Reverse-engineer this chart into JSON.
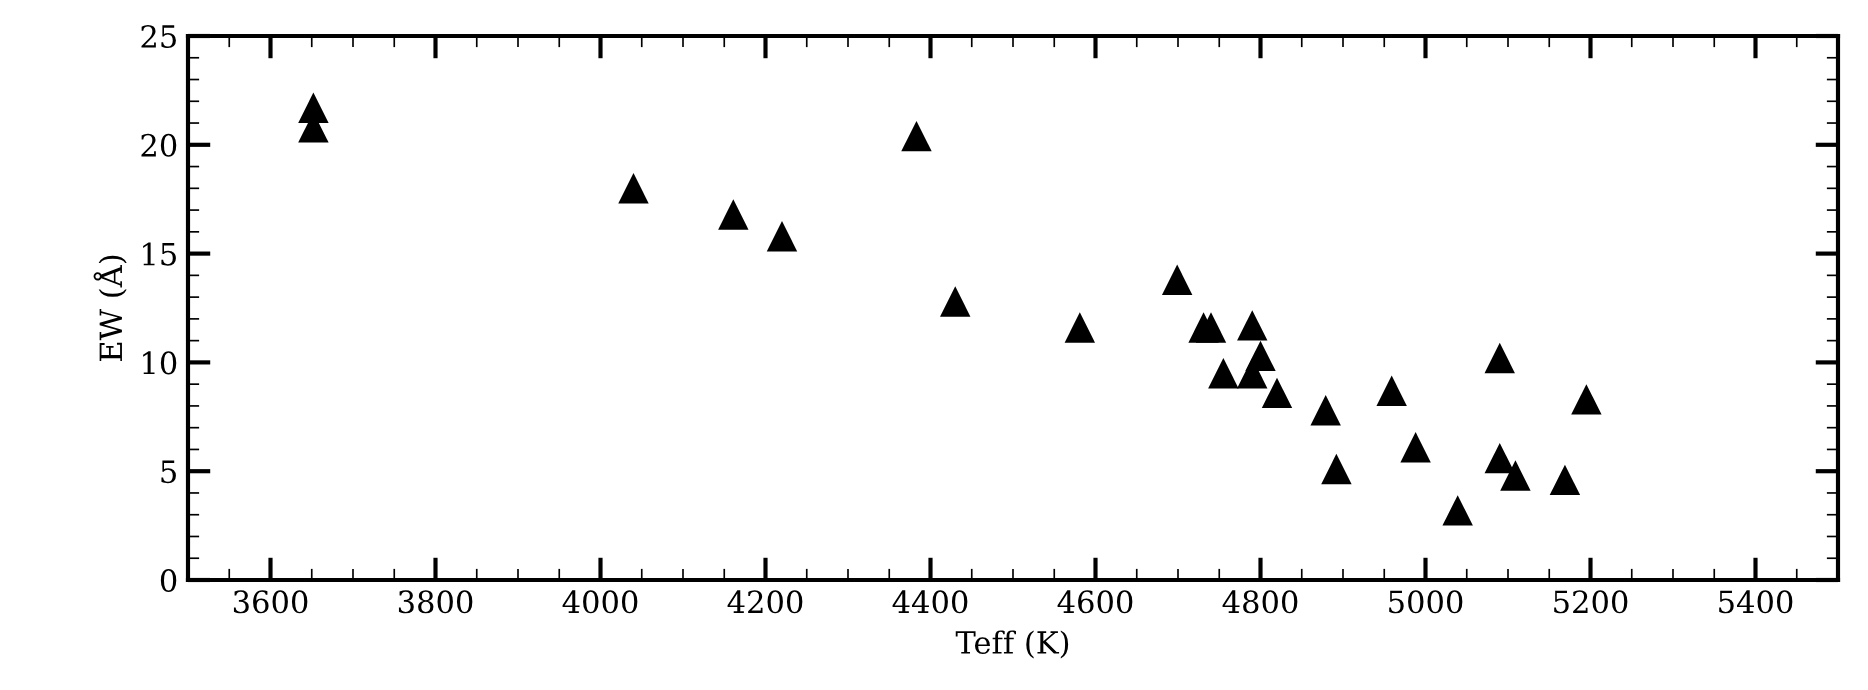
{
  "chart_data": {
    "type": "scatter",
    "xlabel": "Teff (K)",
    "ylabel": "EW (Å)",
    "marker": "triangle",
    "grid": false,
    "x": [
      3652,
      3652,
      4040,
      4161,
      4220,
      4383,
      4430,
      4581,
      4699,
      4731,
      4740,
      4755,
      4790,
      4790,
      4800,
      4820,
      4879,
      4892,
      4959,
      4988,
      5039,
      5090,
      5090,
      5109,
      5169,
      5195
    ],
    "series": [
      {
        "color": "#000000",
        "values": [
          21.7,
          20.8,
          18.0,
          16.8,
          15.8,
          20.4,
          12.8,
          11.6,
          13.8,
          11.6,
          11.6,
          9.5,
          11.7,
          9.5,
          10.3,
          8.6,
          7.8,
          5.1,
          8.7,
          6.1,
          3.2,
          10.2,
          5.6,
          4.8,
          4.6,
          8.3
        ]
      }
    ],
    "xlim": [
      3500,
      5500
    ],
    "xticks": [
      3600,
      3800,
      4000,
      4200,
      4400,
      4600,
      4800,
      5000,
      5200,
      5400
    ],
    "ylim": [
      0,
      25
    ],
    "yticks": [
      0,
      5,
      10,
      15,
      20,
      25
    ]
  }
}
